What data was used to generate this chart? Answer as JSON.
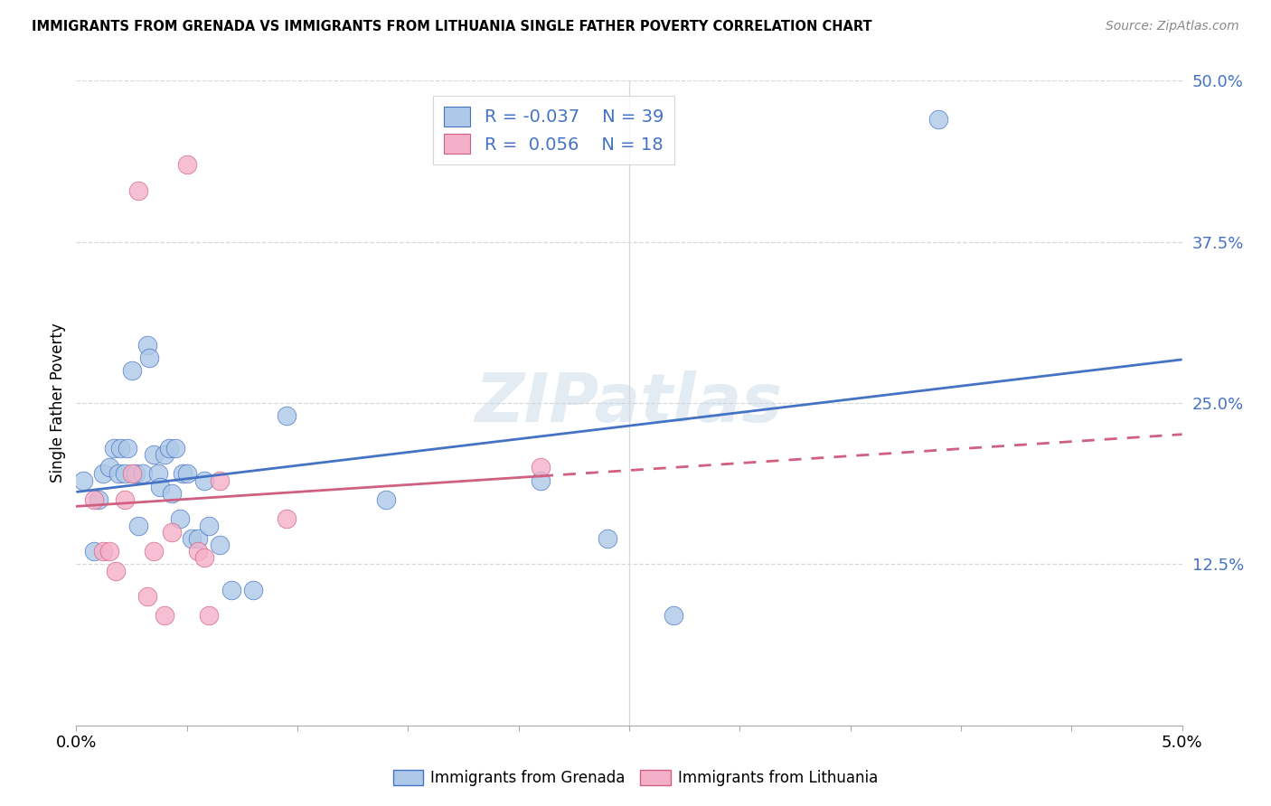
{
  "title": "IMMIGRANTS FROM GRENADA VS IMMIGRANTS FROM LITHUANIA SINGLE FATHER POVERTY CORRELATION CHART",
  "source": "Source: ZipAtlas.com",
  "ylabel": "Single Father Poverty",
  "x_min": 0.0,
  "x_max": 0.05,
  "y_min": 0.0,
  "y_max": 0.5,
  "y_ticks": [
    0.0,
    0.125,
    0.25,
    0.375,
    0.5
  ],
  "y_tick_labels": [
    "",
    "12.5%",
    "25.0%",
    "37.5%",
    "50.0%"
  ],
  "x_ticks": [
    0.0,
    0.005,
    0.01,
    0.015,
    0.02,
    0.025,
    0.03,
    0.035,
    0.04,
    0.045,
    0.05
  ],
  "grenada_R": -0.037,
  "grenada_N": 39,
  "lithuania_R": 0.056,
  "lithuania_N": 18,
  "grenada_color": "#adc8e8",
  "grenada_edge_color": "#4472c4",
  "lithuania_color": "#f4b0c8",
  "lithuania_edge_color": "#d06080",
  "trend_blue": "#4472c4",
  "trend_pink": "#d06080",
  "background_color": "#ffffff",
  "watermark": "ZIPatlas",
  "grid_color": "#d8d8d8",
  "grenada_x": [
    0.0003,
    0.0008,
    0.001,
    0.0012,
    0.0015,
    0.0017,
    0.0019,
    0.002,
    0.0022,
    0.0023,
    0.0025,
    0.0027,
    0.0028,
    0.003,
    0.0032,
    0.0033,
    0.0035,
    0.0037,
    0.0038,
    0.004,
    0.0042,
    0.0043,
    0.0045,
    0.0047,
    0.0048,
    0.005,
    0.0052,
    0.0055,
    0.0058,
    0.006,
    0.0065,
    0.007,
    0.008,
    0.0095,
    0.014,
    0.021,
    0.024,
    0.027,
    0.039
  ],
  "grenada_y": [
    0.19,
    0.135,
    0.175,
    0.195,
    0.2,
    0.215,
    0.195,
    0.215,
    0.195,
    0.215,
    0.275,
    0.195,
    0.155,
    0.195,
    0.295,
    0.285,
    0.21,
    0.195,
    0.185,
    0.21,
    0.215,
    0.18,
    0.215,
    0.16,
    0.195,
    0.195,
    0.145,
    0.145,
    0.19,
    0.155,
    0.14,
    0.105,
    0.105,
    0.24,
    0.175,
    0.19,
    0.145,
    0.085,
    0.47
  ],
  "lithuania_x": [
    0.0008,
    0.0012,
    0.0015,
    0.0018,
    0.0022,
    0.0025,
    0.0028,
    0.0032,
    0.0035,
    0.004,
    0.0043,
    0.005,
    0.0055,
    0.0058,
    0.006,
    0.0065,
    0.0095,
    0.021
  ],
  "lithuania_y": [
    0.175,
    0.135,
    0.135,
    0.12,
    0.175,
    0.195,
    0.415,
    0.1,
    0.135,
    0.085,
    0.15,
    0.435,
    0.135,
    0.13,
    0.085,
    0.19,
    0.16,
    0.2
  ]
}
